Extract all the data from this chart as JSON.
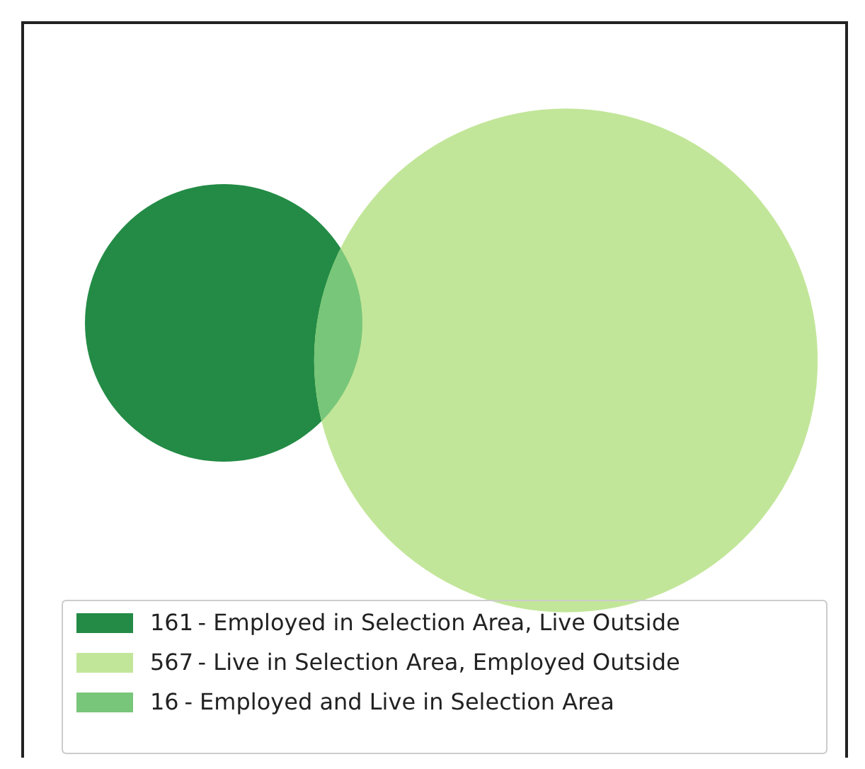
{
  "chart_data": {
    "type": "other",
    "categories": [
      "- Employed in Selection Area, Live Outside",
      "- Live in Selection Area, Employed Outside",
      "- Employed and Live in Selection Area"
    ],
    "values": [
      161,
      567,
      16
    ],
    "value_labels": [
      "161",
      "567",
      "16"
    ],
    "colors": [
      "#238b45",
      "#c2e699",
      "#78c679"
    ]
  }
}
